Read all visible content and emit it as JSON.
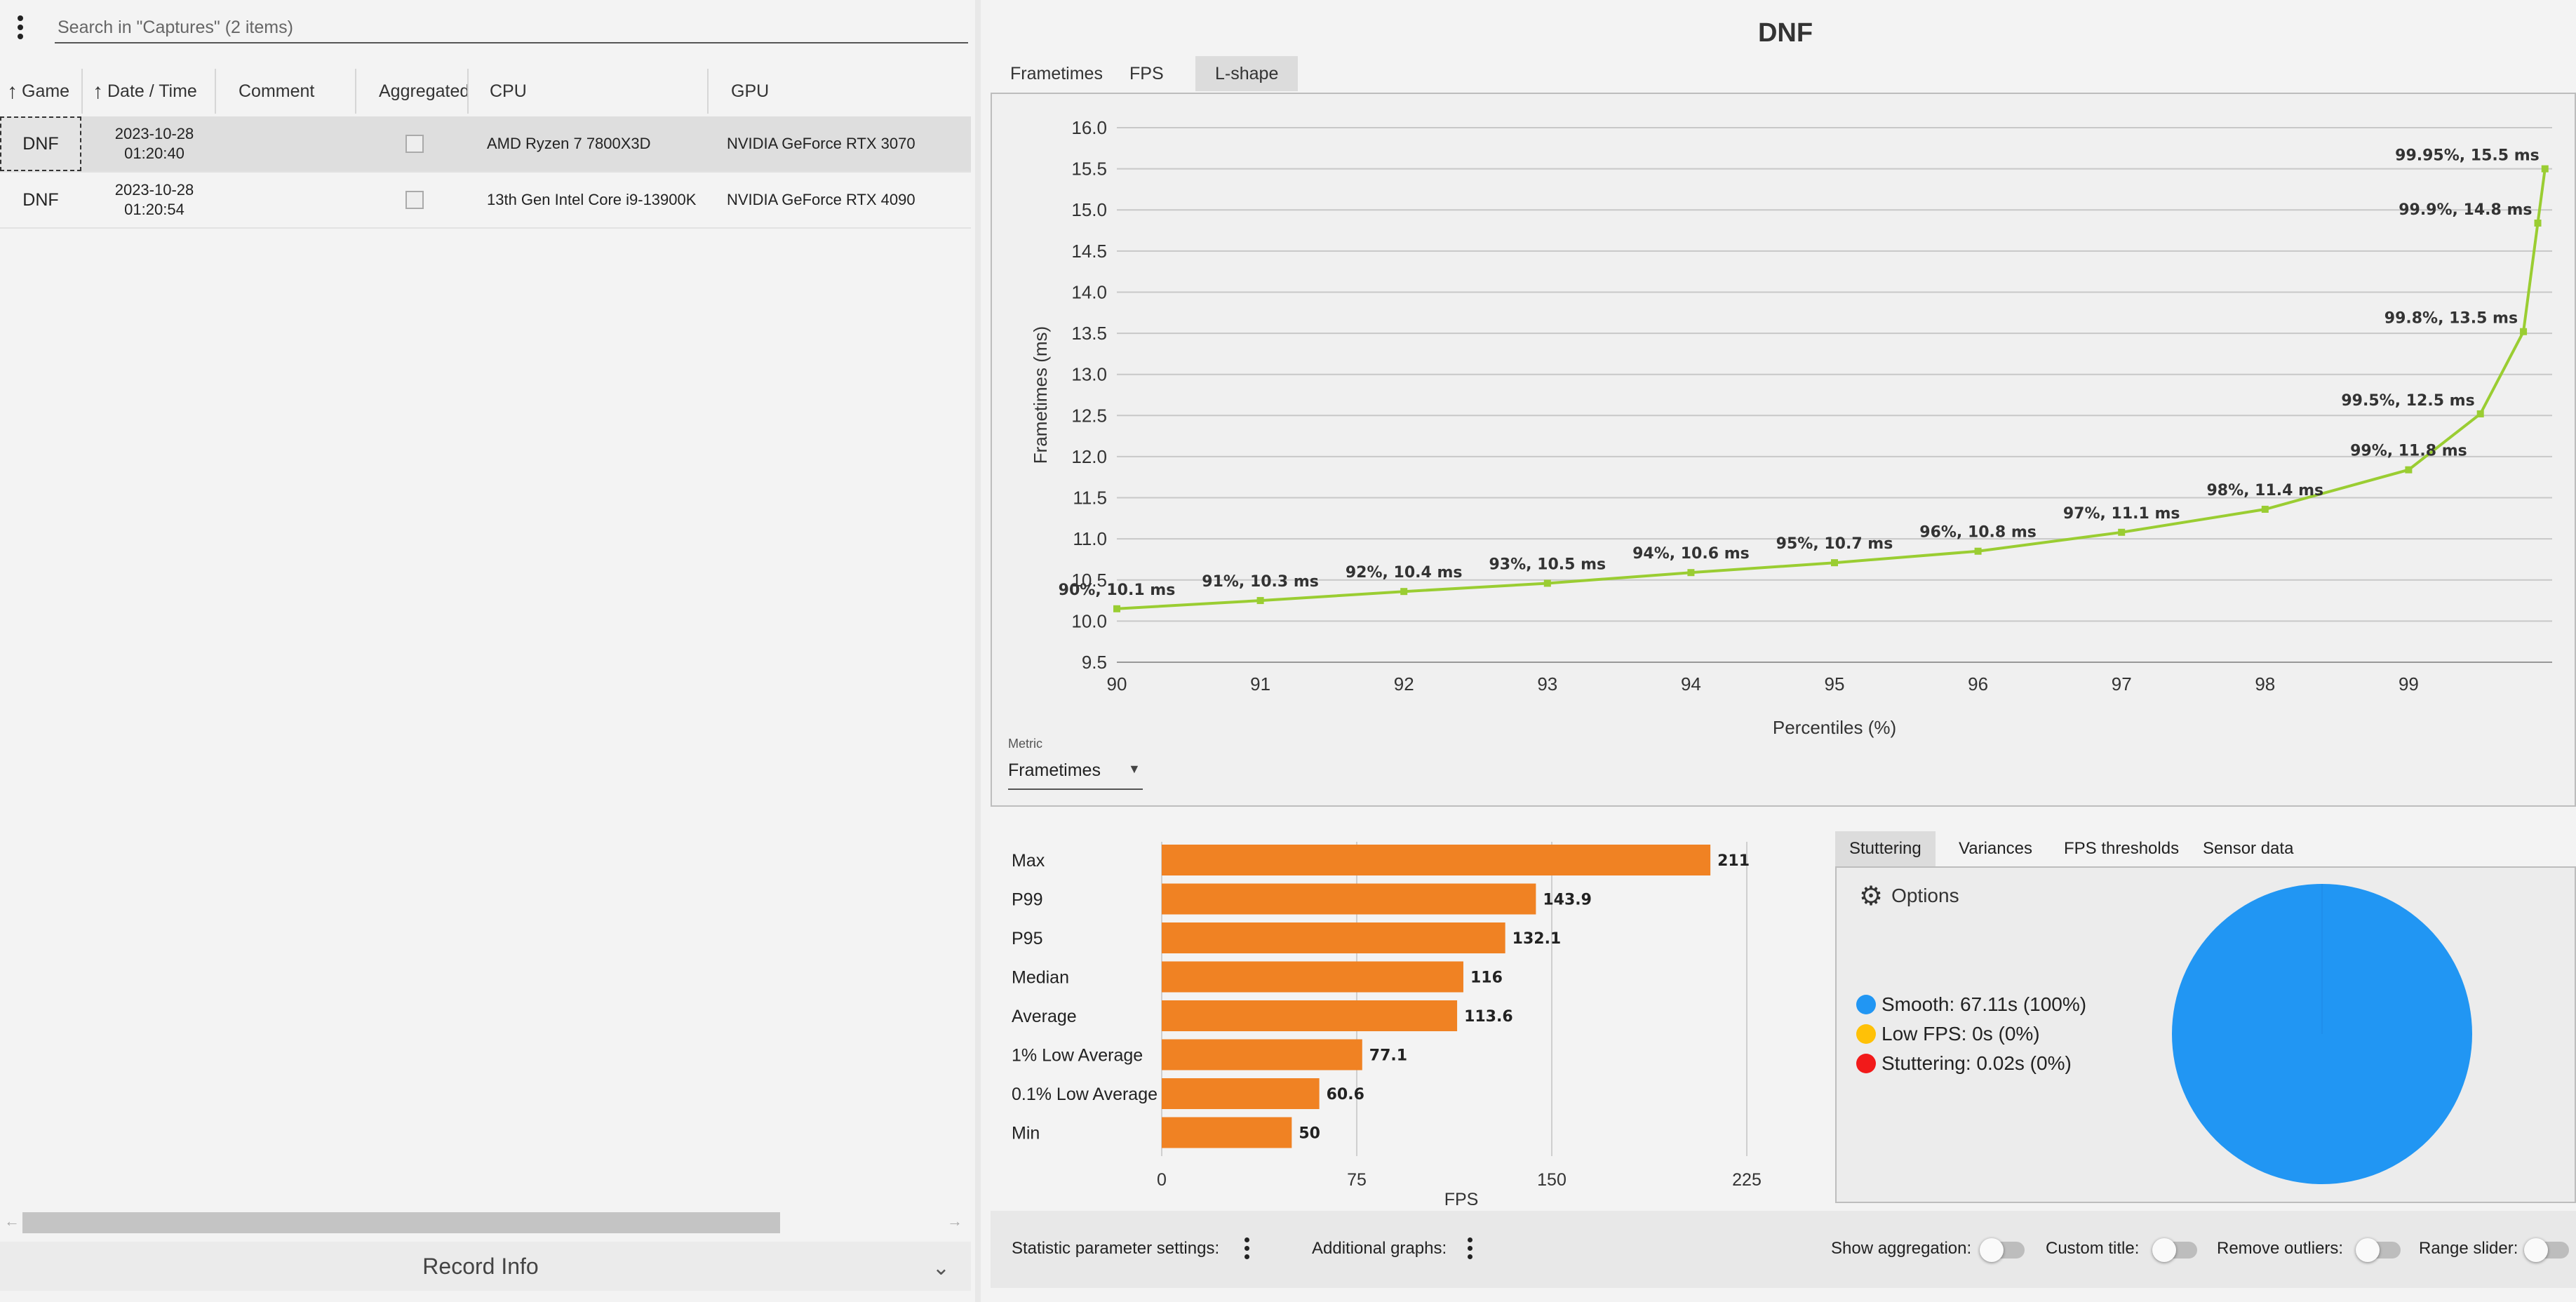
{
  "search": {
    "placeholder": "Search in \"Captures\" (2 items)"
  },
  "grid": {
    "columns": [
      "Game",
      "Date / Time",
      "Comment",
      "Aggregated",
      "CPU",
      "GPU"
    ],
    "rows": [
      {
        "game": "DNF",
        "date": "2023-10-28",
        "time": "01:20:40",
        "cpu": "AMD Ryzen 7 7800X3D",
        "gpu": "NVIDIA GeForce RTX 3070"
      },
      {
        "game": "DNF",
        "date": "2023-10-28",
        "time": "01:20:54",
        "cpu": "13th Gen Intel Core i9-13900K",
        "gpu": "NVIDIA GeForce RTX 4090"
      }
    ]
  },
  "record_info": {
    "label": "Record Info"
  },
  "chart_title": "DNF",
  "tabs": [
    "Frametimes",
    "FPS",
    "L-shape"
  ],
  "metric": {
    "label": "Metric",
    "value": "Frametimes"
  },
  "chart_data": [
    {
      "type": "line",
      "title": "DNF",
      "xlabel": "Percentiles (%)",
      "ylabel": "Frametimes (ms)",
      "xlim": [
        90,
        100
      ],
      "ylim": [
        9.5,
        16.0
      ],
      "xticks": [
        90,
        91,
        92,
        93,
        94,
        95,
        96,
        97,
        98,
        99
      ],
      "yticks": [
        9.5,
        10.0,
        10.5,
        11.0,
        11.5,
        12.0,
        12.5,
        13.0,
        13.5,
        14.0,
        14.5,
        15.0,
        15.5,
        16.0
      ],
      "color": "#9acd32",
      "points": [
        {
          "x": 90,
          "y": 10.15,
          "label": "90%, 10.1 ms"
        },
        {
          "x": 91,
          "y": 10.25,
          "label": "91%, 10.3 ms"
        },
        {
          "x": 92,
          "y": 10.36,
          "label": "92%, 10.4 ms"
        },
        {
          "x": 93,
          "y": 10.46,
          "label": "93%, 10.5 ms"
        },
        {
          "x": 94,
          "y": 10.59,
          "label": "94%, 10.6 ms"
        },
        {
          "x": 95,
          "y": 10.71,
          "label": "95%, 10.7 ms"
        },
        {
          "x": 96,
          "y": 10.85,
          "label": "96%, 10.8 ms"
        },
        {
          "x": 97,
          "y": 11.08,
          "label": "97%, 11.1 ms"
        },
        {
          "x": 98,
          "y": 11.36,
          "label": "98%, 11.4 ms"
        },
        {
          "x": 99,
          "y": 11.84,
          "label": "99%, 11.8 ms"
        },
        {
          "x": 99.5,
          "y": 12.52,
          "label": "99.5%, 12.5 ms"
        },
        {
          "x": 99.8,
          "y": 13.52,
          "label": "99.8%, 13.5 ms"
        },
        {
          "x": 99.9,
          "y": 14.84,
          "label": "99.9%, 14.8 ms"
        },
        {
          "x": 99.95,
          "y": 15.5,
          "label": "99.95%, 15.5 ms"
        }
      ]
    },
    {
      "type": "bar",
      "orientation": "horizontal",
      "xlabel": "FPS",
      "xlim": [
        0,
        225
      ],
      "xticks": [
        0,
        75,
        150,
        225
      ],
      "color": "#f08223",
      "categories": [
        "Max",
        "P99",
        "P95",
        "Median",
        "Average",
        "1% Low Average",
        "0.1% Low Average",
        "Min"
      ],
      "values": [
        211,
        143.9,
        132.1,
        116,
        113.6,
        77.1,
        60.6,
        50
      ],
      "value_labels": [
        "211",
        "143.9",
        "132.1",
        "116",
        "113.6",
        "77.1",
        "60.6",
        "50"
      ]
    },
    {
      "type": "pie",
      "slices": [
        {
          "name": "Smooth",
          "value": 100,
          "color": "#2196f3"
        },
        {
          "name": "Low FPS",
          "value": 0,
          "color": "#ffc107"
        },
        {
          "name": "Stuttering",
          "value": 0,
          "color": "#f21a1a"
        }
      ]
    }
  ],
  "stuttering": {
    "tabs": [
      "Stuttering",
      "Variances",
      "FPS thresholds",
      "Sensor data"
    ],
    "options_label": "Options",
    "legend": [
      {
        "label": "Smooth:  67.11s (100%)",
        "color": "#2196f3"
      },
      {
        "label": "Low FPS:  0s (0%)",
        "color": "#ffc107"
      },
      {
        "label": "Stuttering:  0.02s (0%)",
        "color": "#f21a1a"
      }
    ]
  },
  "footer": {
    "stat_params": "Statistic parameter settings:",
    "additional_graphs": "Additional graphs:",
    "show_aggregation": "Show aggregation:",
    "custom_title": "Custom title:",
    "remove_outliers": "Remove outliers:",
    "range_slider": "Range slider:"
  }
}
